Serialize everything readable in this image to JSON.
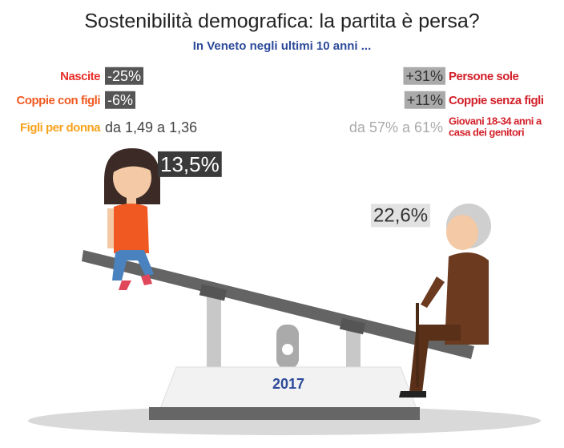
{
  "title": "Sostenibilità demografica: la partita è persa?",
  "subtitle": "In Veneto negli ultimi 10 anni ...",
  "left_stats": [
    {
      "label": "Nascite",
      "value": "-25%"
    },
    {
      "label": "Coppie con figli",
      "value": "-6%"
    },
    {
      "label": "Figli per donna",
      "value": "da 1,49 a 1,36"
    }
  ],
  "right_stats": [
    {
      "value": "+31%",
      "label": "Persone sole"
    },
    {
      "value": "+11%",
      "label": "Coppie senza figli"
    },
    {
      "value": "da 57% a 61%",
      "label_lines": [
        "Giovani 18-34 anni a",
        "casa dei genitori"
      ]
    }
  ],
  "girl_value": "13,5%",
  "elder_value": "22,6%",
  "year": "2017"
}
